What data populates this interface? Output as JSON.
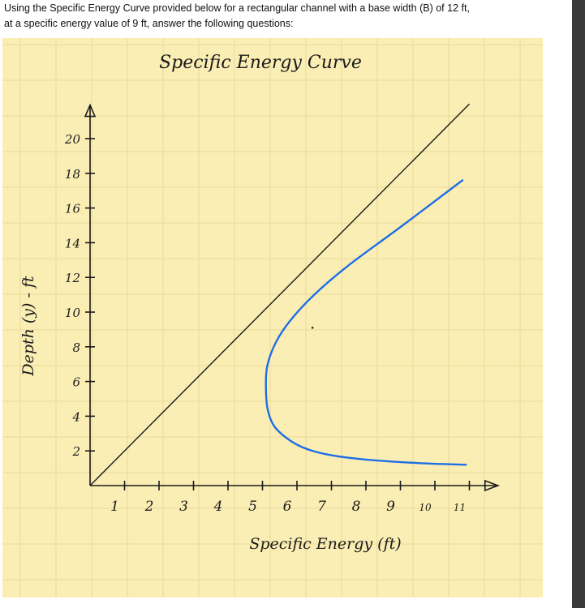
{
  "question": {
    "line1": "Using the Specific Energy Curve provided below for a rectangular channel with a base width (B) of 12 ft,",
    "line2": "at a specific energy value of 9 ft, answer the following questions:"
  },
  "colors": {
    "paper": "#fbeeb4",
    "grid": "#e9d89a",
    "ink": "#1a1a1a",
    "curve": "#1e6fe6",
    "scrollbar": "#3a3a3a"
  },
  "chart_data": {
    "type": "line",
    "title": "Specific Energy Curve",
    "xlabel": "Specific Energy (ft)",
    "ylabel": "Depth (y) - ft",
    "xlim": [
      0,
      11.5
    ],
    "ylim": [
      0,
      21
    ],
    "x_ticks": [
      1,
      2,
      3,
      4,
      5,
      6,
      7,
      8,
      9,
      10,
      11
    ],
    "x_tick_labels": [
      "1",
      "2",
      "3",
      "4",
      "5",
      "6",
      "7",
      "8",
      "9",
      "10",
      "11"
    ],
    "y_ticks": [
      2,
      4,
      6,
      8,
      10,
      12,
      14,
      16,
      18,
      20
    ],
    "y_tick_labels": [
      "2",
      "4",
      "6",
      "8",
      "10",
      "12",
      "14",
      "16",
      "18",
      "20"
    ],
    "grid": true,
    "series": [
      {
        "kind": "reference-line",
        "color": "#1a1a1a",
        "x": [
          0,
          11
        ],
        "y": [
          0,
          22
        ]
      },
      {
        "kind": "specific-energy-curve",
        "color": "#1e6fe6",
        "x": [
          10.9,
          9.5,
          8,
          7,
          6.3,
          5.8,
          5.35,
          5.15,
          5.1,
          5.15,
          5.4,
          5.8,
          6.5,
          7.5,
          9,
          10.8
        ],
        "y": [
          1.2,
          1.3,
          1.5,
          1.75,
          2.1,
          2.6,
          3.4,
          4.4,
          5.8,
          7.0,
          8.3,
          9.5,
          11.0,
          12.7,
          14.9,
          17.6
        ]
      }
    ]
  }
}
